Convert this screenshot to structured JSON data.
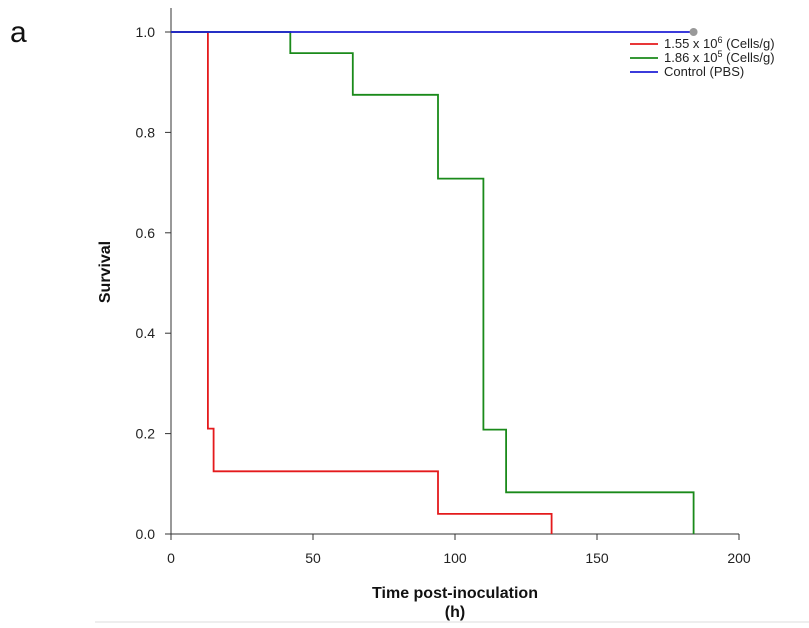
{
  "panel_label": "a",
  "chart_data": {
    "type": "line",
    "step": true,
    "xlabel_line1": "Time post-inoculation",
    "xlabel_line2": "(h)",
    "ylabel": "Survival",
    "xlim": [
      0,
      200
    ],
    "ylim": [
      0,
      1.0
    ],
    "xticks": [
      0,
      50,
      100,
      150,
      200
    ],
    "yticks": [
      0.0,
      0.2,
      0.4,
      0.6,
      0.8,
      1.0
    ],
    "xtick_labels": [
      "0",
      "50",
      "100",
      "150",
      "200"
    ],
    "ytick_labels": [
      "0.0",
      "0.2",
      "0.4",
      "0.6",
      "0.8",
      "1.0"
    ],
    "grid": false,
    "legend_position": "top-right",
    "series": [
      {
        "name_prefix": "1.55 x 10",
        "name_exp": "6",
        "name_suffix": " (Cells/g)",
        "color": "#e41a1c",
        "x": [
          0,
          13,
          13,
          15,
          15,
          94,
          94,
          134,
          134
        ],
        "y": [
          1.0,
          1.0,
          0.21,
          0.21,
          0.125,
          0.125,
          0.04,
          0.04,
          0.0
        ]
      },
      {
        "name_prefix": "1.86 x 10",
        "name_exp": "5",
        "name_suffix": " (Cells/g)",
        "color": "#1a8a1a",
        "x": [
          0,
          42,
          42,
          64,
          64,
          94,
          94,
          110,
          110,
          118,
          118,
          184,
          184
        ],
        "y": [
          1.0,
          1.0,
          0.958,
          0.958,
          0.875,
          0.875,
          0.708,
          0.708,
          0.208,
          0.208,
          0.083,
          0.083,
          0.0
        ]
      },
      {
        "name_prefix": "Control (PBS)",
        "name_exp": "",
        "name_suffix": "",
        "color": "#1f1fd6",
        "x": [
          0,
          184
        ],
        "y": [
          1.0,
          1.0
        ],
        "end_marker": {
          "x": 184,
          "y": 1.0,
          "color": "#999999"
        }
      }
    ]
  }
}
